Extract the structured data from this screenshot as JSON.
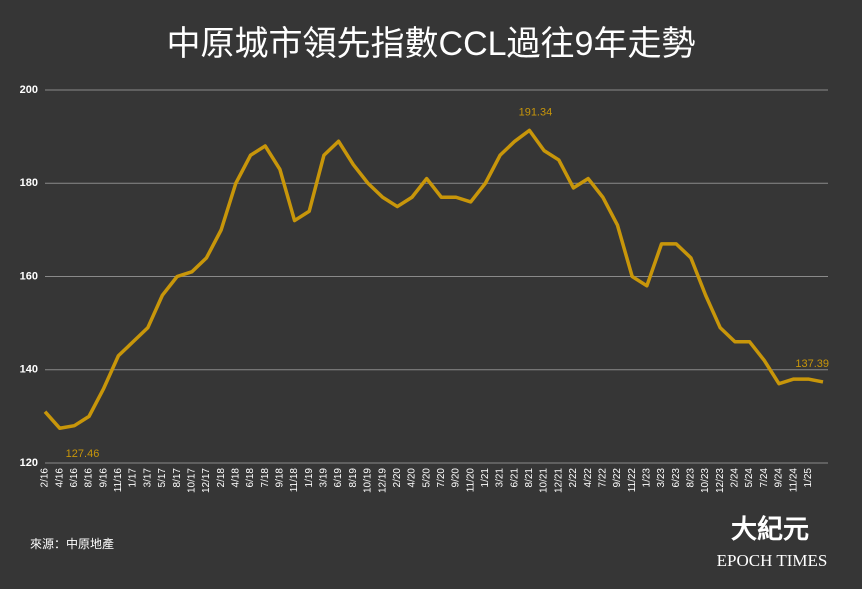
{
  "chart_data": {
    "type": "line",
    "title": "中原城市領先指數CCL過往9年走勢",
    "categories": [
      "2/16",
      "4/16",
      "6/16",
      "8/16",
      "9/16",
      "11/16",
      "1/17",
      "3/17",
      "5/17",
      "8/17",
      "10/17",
      "12/17",
      "2/18",
      "4/18",
      "6/18",
      "7/18",
      "9/18",
      "11/18",
      "1/19",
      "3/19",
      "6/19",
      "8/19",
      "10/19",
      "12/19",
      "2/20",
      "4/20",
      "5/20",
      "7/20",
      "9/20",
      "11/20",
      "1/21",
      "3/21",
      "6/21",
      "8/21",
      "10/21",
      "12/21",
      "2/22",
      "4/22",
      "7/22",
      "9/22",
      "11/22",
      "1/23",
      "3/23",
      "6/23",
      "8/23",
      "10/23",
      "12/23",
      "2/24",
      "5/24",
      "7/24",
      "9/24",
      "11/24",
      "1/25",
      null
    ],
    "values": [
      131,
      127.46,
      128,
      130,
      136,
      143,
      146,
      149,
      156,
      160,
      161,
      164,
      170,
      180,
      186,
      188,
      183,
      172,
      174,
      186,
      189,
      184,
      180,
      177,
      175,
      177,
      181,
      177,
      177,
      176,
      180,
      186,
      189,
      191.34,
      187,
      185,
      179,
      181,
      177,
      171,
      160,
      158,
      167,
      167,
      164,
      156,
      149,
      146,
      146,
      142,
      137,
      138,
      138,
      137.39
    ],
    "value_labels": [
      null,
      "127.46",
      null,
      null,
      null,
      null,
      null,
      null,
      null,
      null,
      null,
      null,
      null,
      null,
      null,
      null,
      null,
      null,
      null,
      null,
      null,
      null,
      null,
      null,
      null,
      null,
      null,
      null,
      null,
      null,
      null,
      null,
      null,
      "191.34",
      null,
      null,
      null,
      null,
      null,
      null,
      null,
      null,
      null,
      null,
      null,
      null,
      null,
      null,
      null,
      null,
      null,
      null,
      null,
      "137.39"
    ],
    "color": "#c8960a",
    "ylim": [
      120,
      200
    ],
    "yticks": [
      120,
      140,
      160,
      180,
      200
    ],
    "grid": true,
    "source": "來源：中原地產",
    "watermark": [
      "大紀元",
      "EPOCH TIMES"
    ]
  }
}
